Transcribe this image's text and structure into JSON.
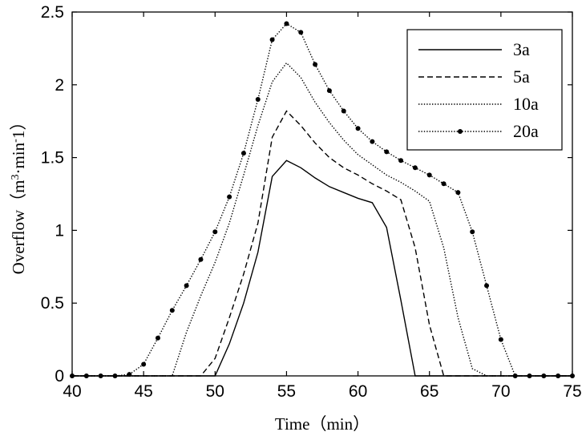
{
  "chart_data": {
    "type": "line",
    "xlabel": "Time（min）",
    "ylabel": {
      "prefix": "Overflow（m",
      "sup1": "3",
      "mid": "·min",
      "sup2": "-",
      "suffix": "1）"
    },
    "xlim": [
      40,
      75
    ],
    "ylim": [
      0,
      2.5
    ],
    "xticks": [
      40,
      45,
      50,
      55,
      60,
      65,
      70,
      75
    ],
    "yticks": [
      0,
      0.5,
      1,
      1.5,
      2,
      2.5
    ],
    "ytick_labels": [
      "0",
      "0.5",
      "1",
      "1.5",
      "2",
      "2.5"
    ],
    "grid": false,
    "legend_position": "top-right",
    "series": [
      {
        "name": "3a",
        "style": "solid",
        "points": [
          [
            40,
            0
          ],
          [
            50,
            0
          ],
          [
            51,
            0.22
          ],
          [
            52,
            0.5
          ],
          [
            53,
            0.85
          ],
          [
            54,
            1.37
          ],
          [
            55,
            1.48
          ],
          [
            56,
            1.43
          ],
          [
            57,
            1.36
          ],
          [
            58,
            1.3
          ],
          [
            59,
            1.26
          ],
          [
            60,
            1.22
          ],
          [
            61,
            1.19
          ],
          [
            62,
            1.02
          ],
          [
            63,
            0.52
          ],
          [
            64,
            0
          ],
          [
            75,
            0
          ]
        ]
      },
      {
        "name": "5a",
        "style": "dashed",
        "points": [
          [
            40,
            0
          ],
          [
            49,
            0
          ],
          [
            50,
            0.12
          ],
          [
            51,
            0.4
          ],
          [
            52,
            0.7
          ],
          [
            53,
            1.05
          ],
          [
            54,
            1.64
          ],
          [
            55,
            1.82
          ],
          [
            56,
            1.72
          ],
          [
            57,
            1.6
          ],
          [
            58,
            1.5
          ],
          [
            59,
            1.43
          ],
          [
            60,
            1.38
          ],
          [
            61,
            1.32
          ],
          [
            62,
            1.27
          ],
          [
            63,
            1.21
          ],
          [
            64,
            0.88
          ],
          [
            65,
            0.35
          ],
          [
            66,
            0
          ],
          [
            75,
            0
          ]
        ]
      },
      {
        "name": "10a",
        "style": "dotted",
        "points": [
          [
            40,
            0
          ],
          [
            47,
            0
          ],
          [
            48,
            0.3
          ],
          [
            49,
            0.55
          ],
          [
            50,
            0.78
          ],
          [
            51,
            1.05
          ],
          [
            52,
            1.38
          ],
          [
            53,
            1.72
          ],
          [
            54,
            2.02
          ],
          [
            55,
            2.15
          ],
          [
            56,
            2.05
          ],
          [
            57,
            1.88
          ],
          [
            58,
            1.74
          ],
          [
            59,
            1.62
          ],
          [
            60,
            1.52
          ],
          [
            61,
            1.45
          ],
          [
            62,
            1.38
          ],
          [
            63,
            1.33
          ],
          [
            64,
            1.27
          ],
          [
            65,
            1.2
          ],
          [
            66,
            0.88
          ],
          [
            67,
            0.4
          ],
          [
            68,
            0.05
          ],
          [
            69,
            0
          ],
          [
            75,
            0
          ]
        ]
      },
      {
        "name": "20a",
        "style": "dotted-marker",
        "points": [
          [
            40,
            0
          ],
          [
            41,
            0
          ],
          [
            42,
            0
          ],
          [
            43,
            0
          ],
          [
            44,
            0.01
          ],
          [
            45,
            0.08
          ],
          [
            46,
            0.26
          ],
          [
            47,
            0.45
          ],
          [
            48,
            0.62
          ],
          [
            49,
            0.8
          ],
          [
            50,
            0.99
          ],
          [
            51,
            1.23
          ],
          [
            52,
            1.53
          ],
          [
            53,
            1.9
          ],
          [
            54,
            2.31
          ],
          [
            55,
            2.42
          ],
          [
            56,
            2.36
          ],
          [
            57,
            2.14
          ],
          [
            58,
            1.96
          ],
          [
            59,
            1.82
          ],
          [
            60,
            1.7
          ],
          [
            61,
            1.61
          ],
          [
            62,
            1.54
          ],
          [
            63,
            1.48
          ],
          [
            64,
            1.43
          ],
          [
            65,
            1.38
          ],
          [
            66,
            1.32
          ],
          [
            67,
            1.26
          ],
          [
            68,
            0.99
          ],
          [
            69,
            0.62
          ],
          [
            70,
            0.25
          ],
          [
            71,
            0
          ],
          [
            72,
            0
          ],
          [
            73,
            0
          ],
          [
            74,
            0
          ],
          [
            75,
            0
          ]
        ]
      }
    ]
  }
}
